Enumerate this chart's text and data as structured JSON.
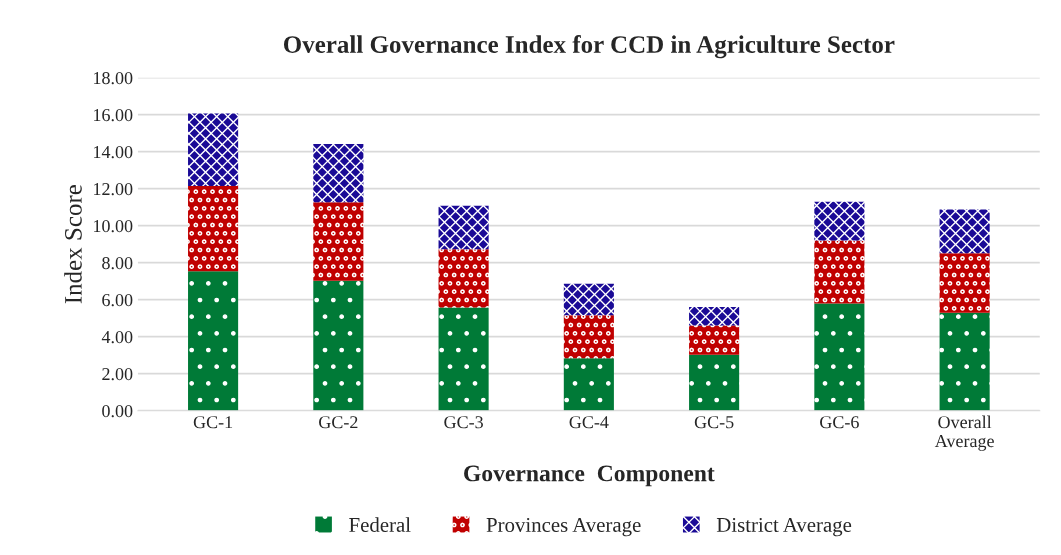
{
  "chart_data": {
    "type": "bar",
    "title": "Overall Governance Index for CCD in Agriculture Sector",
    "xlabel": "Governance  Component",
    "ylabel": "Index Score",
    "categories": [
      "GC-1",
      "GC-2",
      "GC-3",
      "GC-4",
      "GC-5",
      "GC-6",
      "Overall\nAverage"
    ],
    "stacked": true,
    "series": [
      {
        "name": "Federal",
        "color": "#007a37",
        "values": [
          7.54,
          7.02,
          5.58,
          2.84,
          3.02,
          5.8,
          5.29
        ]
      },
      {
        "name": "Provinces Average",
        "color": "#c00000",
        "values": [
          4.61,
          4.25,
          3.15,
          2.32,
          1.59,
          3.4,
          3.22
        ]
      },
      {
        "name": "District Average",
        "color": "#1a0a96",
        "values": [
          3.91,
          3.14,
          2.35,
          1.7,
          0.99,
          2.1,
          2.36
        ]
      }
    ],
    "ylim": [
      0,
      18
    ],
    "yticks": [
      {
        "value": 0,
        "label": "0.00"
      },
      {
        "value": 2,
        "label": "2.00"
      },
      {
        "value": 4,
        "label": "4.00"
      },
      {
        "value": 6,
        "label": "6.00"
      },
      {
        "value": 8,
        "label": "8.00"
      },
      {
        "value": 10,
        "label": "10.00"
      },
      {
        "value": 12,
        "label": "12.00"
      },
      {
        "value": 14,
        "label": "14.00"
      },
      {
        "value": 16,
        "label": "16.00"
      },
      {
        "value": 18,
        "label": "18.00"
      }
    ],
    "grid": "y",
    "legend": "bottom"
  }
}
